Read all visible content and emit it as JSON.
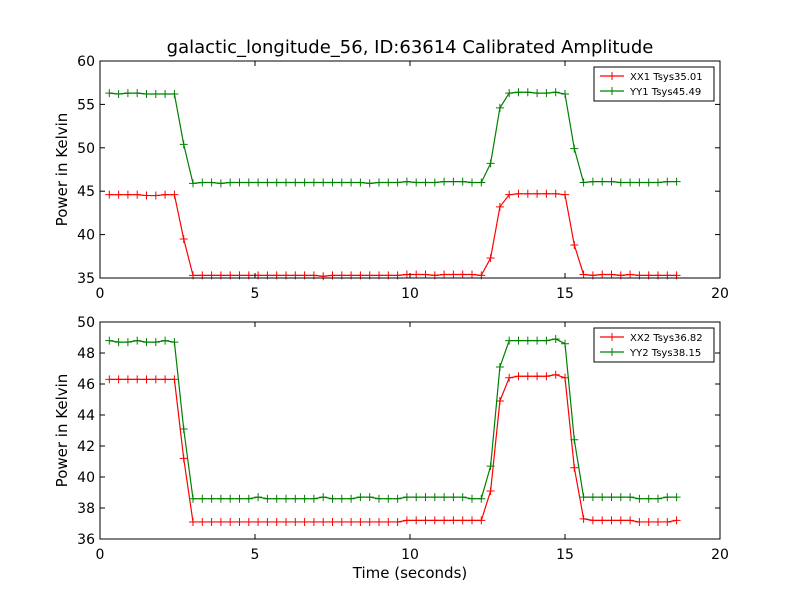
{
  "figure": {
    "title": "galactic_longitude_56, ID:63614 Calibrated Amplitude",
    "xlabel": "Time (seconds)"
  },
  "chart_data": [
    {
      "type": "line",
      "title": "galactic_longitude_56, ID:63614 Calibrated Amplitude",
      "xlabel": "",
      "ylabel": "Power in Kelvin",
      "xlim": [
        0,
        20
      ],
      "ylim": [
        35,
        60
      ],
      "xticks": [
        0,
        5,
        10,
        15,
        20
      ],
      "yticks": [
        35,
        40,
        45,
        50,
        55,
        60
      ],
      "grid": false,
      "legend": "top-right",
      "x": [
        0.3,
        0.6,
        0.9,
        1.2,
        1.5,
        1.8,
        2.1,
        2.4,
        2.7,
        3.0,
        3.3,
        3.6,
        3.9,
        4.2,
        4.5,
        4.8,
        5.1,
        5.4,
        5.7,
        6.0,
        6.3,
        6.6,
        6.9,
        7.2,
        7.5,
        7.8,
        8.1,
        8.4,
        8.7,
        9.0,
        9.3,
        9.6,
        9.9,
        10.2,
        10.5,
        10.8,
        11.1,
        11.4,
        11.7,
        12.0,
        12.3,
        12.6,
        12.9,
        13.2,
        13.5,
        13.8,
        14.1,
        14.4,
        14.7,
        15.0,
        15.3,
        15.6,
        15.9,
        16.2,
        16.5,
        16.8,
        17.1,
        17.4,
        17.7,
        18.0,
        18.3,
        18.6
      ],
      "series": [
        {
          "name": "XX1 Tsys35.01",
          "color": "#ff0000",
          "values": [
            44.6,
            44.6,
            44.6,
            44.6,
            44.5,
            44.5,
            44.6,
            44.6,
            39.5,
            35.3,
            35.3,
            35.3,
            35.3,
            35.3,
            35.3,
            35.3,
            35.3,
            35.3,
            35.3,
            35.3,
            35.3,
            35.3,
            35.3,
            35.2,
            35.3,
            35.3,
            35.3,
            35.3,
            35.3,
            35.3,
            35.3,
            35.3,
            35.4,
            35.4,
            35.4,
            35.3,
            35.4,
            35.4,
            35.4,
            35.4,
            35.3,
            37.3,
            43.2,
            44.6,
            44.7,
            44.7,
            44.7,
            44.7,
            44.7,
            44.6,
            38.8,
            35.4,
            35.3,
            35.4,
            35.4,
            35.3,
            35.4,
            35.3,
            35.3,
            35.3,
            35.3,
            35.3
          ]
        },
        {
          "name": "YY1 Tsys45.49",
          "color": "#008000",
          "values": [
            56.3,
            56.2,
            56.3,
            56.3,
            56.2,
            56.2,
            56.2,
            56.2,
            50.4,
            45.9,
            46.0,
            46.0,
            45.9,
            46.0,
            46.0,
            46.0,
            46.0,
            46.0,
            46.0,
            46.0,
            46.0,
            46.0,
            46.0,
            46.0,
            46.0,
            46.0,
            46.0,
            46.0,
            45.9,
            46.0,
            46.0,
            46.0,
            46.1,
            46.0,
            46.0,
            46.0,
            46.1,
            46.1,
            46.1,
            46.0,
            46.0,
            48.2,
            54.6,
            56.3,
            56.4,
            56.4,
            56.3,
            56.3,
            56.4,
            56.2,
            49.9,
            46.0,
            46.1,
            46.1,
            46.1,
            46.0,
            46.0,
            46.0,
            46.0,
            46.0,
            46.1,
            46.1
          ]
        }
      ]
    },
    {
      "type": "line",
      "title": "",
      "xlabel": "Time (seconds)",
      "ylabel": "Power in Kelvin",
      "xlim": [
        0,
        20
      ],
      "ylim": [
        36,
        50
      ],
      "xticks": [
        0,
        5,
        10,
        15,
        20
      ],
      "yticks": [
        36,
        38,
        40,
        42,
        44,
        46,
        48,
        50
      ],
      "grid": false,
      "legend": "top-right",
      "x": [
        0.3,
        0.6,
        0.9,
        1.2,
        1.5,
        1.8,
        2.1,
        2.4,
        2.7,
        3.0,
        3.3,
        3.6,
        3.9,
        4.2,
        4.5,
        4.8,
        5.1,
        5.4,
        5.7,
        6.0,
        6.3,
        6.6,
        6.9,
        7.2,
        7.5,
        7.8,
        8.1,
        8.4,
        8.7,
        9.0,
        9.3,
        9.6,
        9.9,
        10.2,
        10.5,
        10.8,
        11.1,
        11.4,
        11.7,
        12.0,
        12.3,
        12.6,
        12.9,
        13.2,
        13.5,
        13.8,
        14.1,
        14.4,
        14.7,
        15.0,
        15.3,
        15.6,
        15.9,
        16.2,
        16.5,
        16.8,
        17.1,
        17.4,
        17.7,
        18.0,
        18.3,
        18.6
      ],
      "series": [
        {
          "name": "XX2 Tsys36.82",
          "color": "#ff0000",
          "values": [
            46.3,
            46.3,
            46.3,
            46.3,
            46.3,
            46.3,
            46.3,
            46.3,
            41.2,
            37.1,
            37.1,
            37.1,
            37.1,
            37.1,
            37.1,
            37.1,
            37.1,
            37.1,
            37.1,
            37.1,
            37.1,
            37.1,
            37.1,
            37.1,
            37.1,
            37.1,
            37.1,
            37.1,
            37.1,
            37.1,
            37.1,
            37.1,
            37.2,
            37.2,
            37.2,
            37.2,
            37.2,
            37.2,
            37.2,
            37.2,
            37.2,
            39.1,
            44.9,
            46.4,
            46.5,
            46.5,
            46.5,
            46.5,
            46.6,
            46.4,
            40.6,
            37.3,
            37.2,
            37.2,
            37.2,
            37.2,
            37.2,
            37.1,
            37.1,
            37.1,
            37.1,
            37.2
          ]
        },
        {
          "name": "YY2 Tsys38.15",
          "color": "#008000",
          "values": [
            48.8,
            48.7,
            48.7,
            48.8,
            48.7,
            48.7,
            48.8,
            48.7,
            43.1,
            38.6,
            38.6,
            38.6,
            38.6,
            38.6,
            38.6,
            38.6,
            38.7,
            38.6,
            38.6,
            38.6,
            38.6,
            38.6,
            38.6,
            38.7,
            38.6,
            38.6,
            38.6,
            38.7,
            38.7,
            38.6,
            38.6,
            38.6,
            38.7,
            38.7,
            38.7,
            38.7,
            38.7,
            38.7,
            38.7,
            38.6,
            38.6,
            40.7,
            47.1,
            48.8,
            48.8,
            48.8,
            48.8,
            48.8,
            48.9,
            48.6,
            42.4,
            38.7,
            38.7,
            38.7,
            38.7,
            38.7,
            38.7,
            38.6,
            38.6,
            38.6,
            38.7,
            38.7
          ]
        }
      ]
    }
  ]
}
